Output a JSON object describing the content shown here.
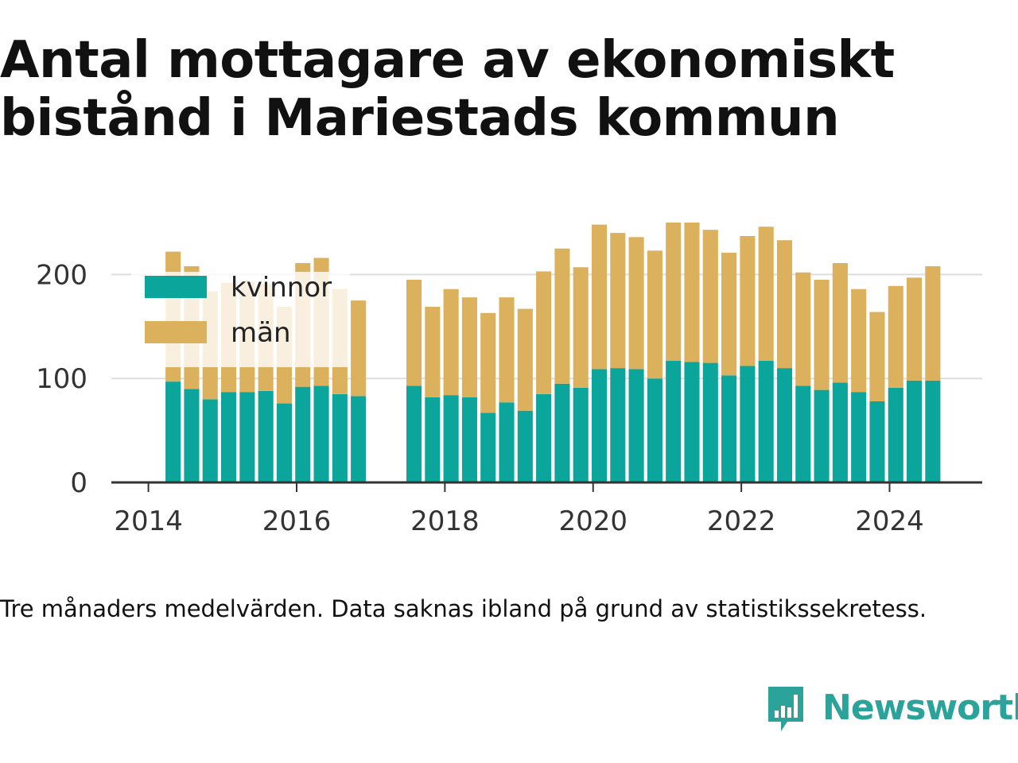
{
  "title": "Antal mottagare av ekonomiskt bistånd i Mariestads kommun",
  "note": "Tre månaders medelvärden. Data saknas ibland på grund av statistikssekretess.",
  "brand": "Newsworthy",
  "colors": {
    "kvinnor": "#0ca59b",
    "man": "#dcb15d",
    "brand": "#2ba39a",
    "axis": "#333333",
    "grid": "#dddddd"
  },
  "icon": "newsworthy-bar-chart-icon",
  "chart_data": {
    "type": "bar",
    "stacked": true,
    "title": "Antal mottagare av ekonomiskt bistånd i Mariestads kommun",
    "xlabel": "",
    "ylabel": "",
    "ylim": [
      0,
      250
    ],
    "xlim": [
      "2013-07-01",
      "2025-04-01"
    ],
    "y_ticks": [
      0,
      100,
      200
    ],
    "x_ticks": [
      "2014",
      "2016",
      "2018",
      "2020",
      "2022",
      "2024"
    ],
    "grid": true,
    "legend": "top-left",
    "x": [
      "2014-05",
      "2014-08",
      "2014-11",
      "2015-02",
      "2015-05",
      "2015-08",
      "2015-11",
      "2016-02",
      "2016-05",
      "2016-08",
      "2016-11",
      "2017-08",
      "2017-11",
      "2018-02",
      "2018-05",
      "2018-08",
      "2018-11",
      "2019-02",
      "2019-05",
      "2019-08",
      "2019-11",
      "2020-02",
      "2020-05",
      "2020-08",
      "2020-11",
      "2021-02",
      "2021-05",
      "2021-08",
      "2021-11",
      "2022-02",
      "2022-05",
      "2022-08",
      "2022-11",
      "2023-02",
      "2023-05",
      "2023-08",
      "2023-11",
      "2024-02",
      "2024-05",
      "2024-08"
    ],
    "series": [
      {
        "name": "kvinnor",
        "values": [
          97,
          90,
          80,
          87,
          87,
          88,
          76,
          92,
          93,
          85,
          83,
          93,
          82,
          84,
          82,
          67,
          77,
          69,
          85,
          95,
          91,
          109,
          110,
          109,
          100,
          117,
          116,
          115,
          103,
          112,
          117,
          110,
          93,
          89,
          96,
          87,
          78,
          91,
          98,
          98
        ]
      },
      {
        "name": "män",
        "values": [
          125,
          118,
          104,
          105,
          106,
          103,
          93,
          119,
          123,
          101,
          92,
          102,
          87,
          102,
          96,
          96,
          101,
          98,
          118,
          130,
          116,
          139,
          130,
          127,
          123,
          133,
          135,
          128,
          118,
          125,
          129,
          123,
          109,
          106,
          115,
          99,
          86,
          98,
          99,
          110
        ]
      }
    ]
  }
}
